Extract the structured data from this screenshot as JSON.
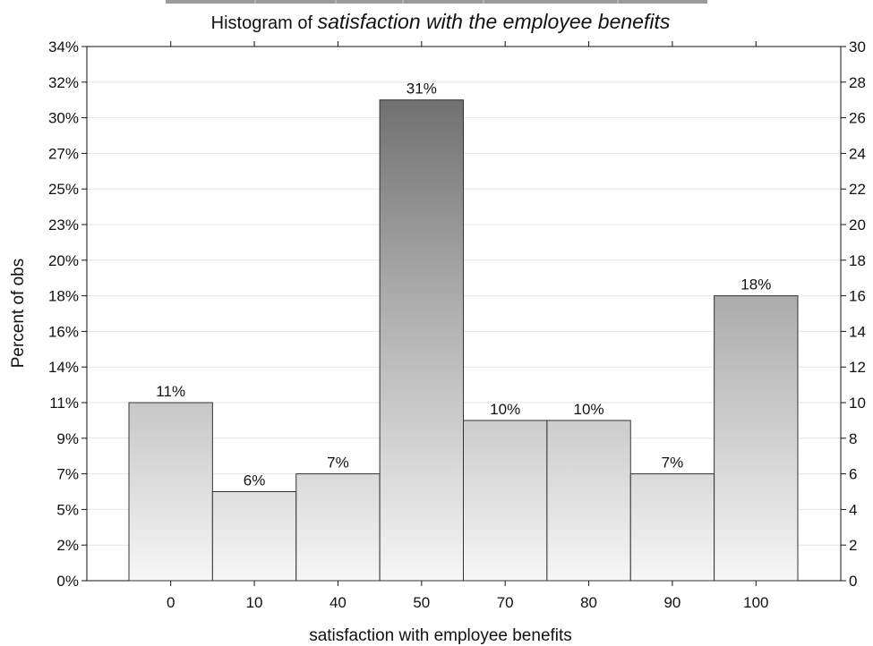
{
  "chart_data": {
    "type": "bar",
    "title_prefix": "Histogram of ",
    "title_emphasis": "satisfaction with the employee benefits",
    "xlabel": "satisfaction with  employee benefits",
    "ylabel": "Percent of obs",
    "categories": [
      "0",
      "10",
      "40",
      "50",
      "70",
      "80",
      "90",
      "100"
    ],
    "series": [
      {
        "counts": [
          10,
          5,
          6,
          27,
          9,
          9,
          6,
          16
        ],
        "labels": [
          "11%",
          "6%",
          "7%",
          "31%",
          "10%",
          "10%",
          "7%",
          "18%"
        ]
      }
    ],
    "left_ticks": [
      "0%",
      "2%",
      "5%",
      "7%",
      "9%",
      "11%",
      "14%",
      "16%",
      "18%",
      "20%",
      "23%",
      "25%",
      "27%",
      "30%",
      "32%",
      "34%"
    ],
    "right_ticks": [
      "0",
      "2",
      "4",
      "6",
      "8",
      "10",
      "12",
      "14",
      "16",
      "18",
      "20",
      "22",
      "24",
      "26",
      "28",
      "30"
    ],
    "y_count_range": [
      0,
      30
    ],
    "grid": true,
    "bar_fill": "gradient-gray"
  }
}
